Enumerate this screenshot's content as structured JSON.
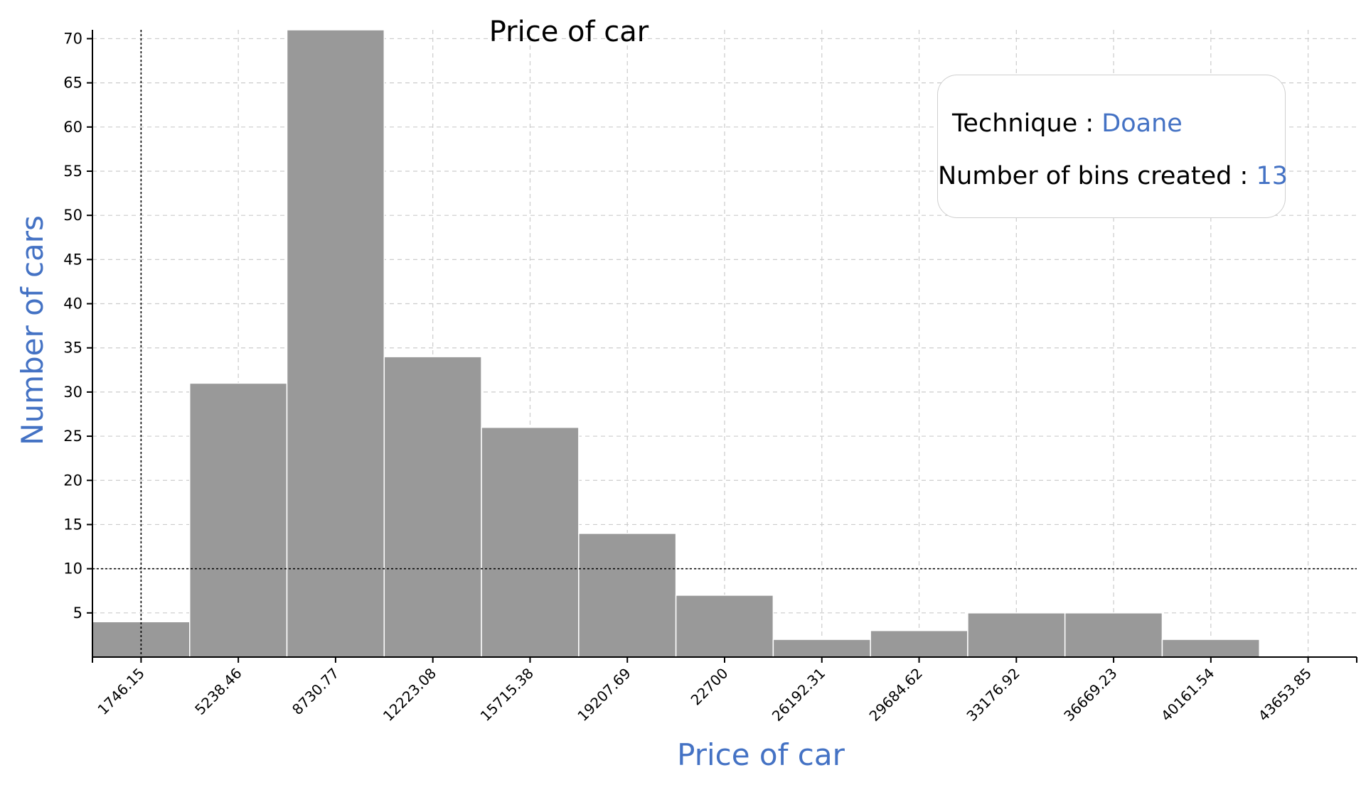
{
  "chart_data": {
    "type": "bar",
    "title": "Price of car",
    "xlabel": "Price of car",
    "ylabel": "Number of cars",
    "x_tick_labels": [
      "1746.15",
      "5238.46",
      "8730.77",
      "12223.08",
      "15715.38",
      "19207.69",
      "22700",
      "26192.31",
      "29684.62",
      "33176.92",
      "36669.23",
      "40161.54",
      "43653.85"
    ],
    "bin_edges": [
      0,
      3492.31,
      6984.62,
      10476.92,
      13969.23,
      17461.54,
      20953.85,
      24446.15,
      27938.46,
      31430.77,
      34923.08,
      38415.38,
      41907.69,
      45400
    ],
    "values": [
      4,
      31,
      71,
      34,
      26,
      14,
      7,
      2,
      3,
      5,
      5,
      2,
      0
    ],
    "y_ticks": [
      5,
      10,
      15,
      20,
      25,
      30,
      35,
      40,
      45,
      50,
      55,
      60,
      65,
      70
    ],
    "ylim": [
      0,
      71
    ],
    "xlim": [
      0,
      45400
    ],
    "reference_lines": {
      "x": 1746.15,
      "y": 10
    },
    "grid": true,
    "colors": {
      "bar": "#999999",
      "axis_label": "#4472c4",
      "info_value": "#4472c4"
    }
  },
  "info": {
    "technique_label": "Technique : ",
    "technique_value": "Doane",
    "bins_label": "Number of bins created : ",
    "bins_value": "13"
  }
}
